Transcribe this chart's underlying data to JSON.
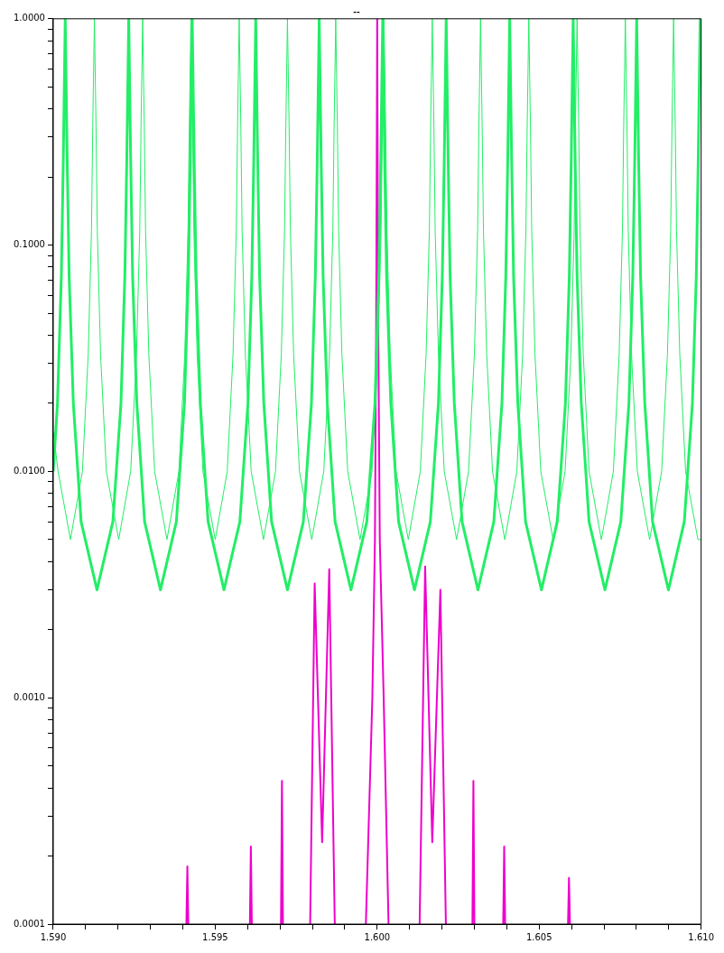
{
  "chart_data": {
    "type": "line",
    "title": "--",
    "xlim": [
      1.59,
      1.61
    ],
    "xticks": [
      {
        "value": 1.59,
        "label": "1.590"
      },
      {
        "value": 1.591,
        "label": null
      },
      {
        "value": 1.592,
        "label": null
      },
      {
        "value": 1.593,
        "label": null
      },
      {
        "value": 1.594,
        "label": null
      },
      1.595,
      {
        "value": 1.596,
        "label": null
      },
      {
        "value": 1.597,
        "label": null
      },
      {
        "value": 1.598,
        "label": null
      },
      {
        "value": 1.599,
        "label": null
      },
      {
        "value": 1.6,
        "label": "1.600"
      },
      {
        "value": 1.601,
        "label": null
      },
      {
        "value": 1.602,
        "label": null
      },
      {
        "value": 1.603,
        "label": null
      },
      {
        "value": 1.604,
        "label": null
      },
      1.605,
      {
        "value": 1.606,
        "label": null
      },
      {
        "value": 1.607,
        "label": null
      },
      {
        "value": 1.608,
        "label": null
      },
      {
        "value": 1.609,
        "label": null
      },
      {
        "value": 1.61,
        "label": "1.610"
      }
    ],
    "ylim": [
      0.0001,
      1
    ],
    "log": "y",
    "grid": false,
    "legend": false,
    "marker": "none",
    "line_style": "solid",
    "yticks": [
      {
        "value": 0.0001,
        "label": "0.0001"
      },
      {
        "value": 0.0002,
        "label": null
      },
      {
        "value": 0.0003,
        "label": null
      },
      {
        "value": 0.0004,
        "label": null
      },
      {
        "value": 0.0005,
        "label": null
      },
      {
        "value": 0.0006,
        "label": null
      },
      {
        "value": 0.0007,
        "label": null
      },
      {
        "value": 0.0008,
        "label": null
      },
      {
        "value": 0.0009,
        "label": null
      },
      {
        "value": 0.001,
        "label": "0.0010"
      },
      {
        "value": 0.002,
        "label": null
      },
      {
        "value": 0.003,
        "label": null
      },
      {
        "value": 0.004,
        "label": null
      },
      {
        "value": 0.005,
        "label": null
      },
      {
        "value": 0.006,
        "label": null
      },
      {
        "value": 0.007,
        "label": null
      },
      {
        "value": 0.008,
        "label": null
      },
      {
        "value": 0.009,
        "label": null
      },
      {
        "value": 0.01,
        "label": "0.0100"
      },
      {
        "value": 0.02,
        "label": null
      },
      {
        "value": 0.03,
        "label": null
      },
      {
        "value": 0.04,
        "label": null
      },
      {
        "value": 0.05,
        "label": null
      },
      {
        "value": 0.06,
        "label": null
      },
      {
        "value": 0.07,
        "label": null
      },
      {
        "value": 0.08,
        "label": null
      },
      {
        "value": 0.09,
        "label": null
      },
      {
        "value": 0.1,
        "label": "0.1000"
      },
      {
        "value": 0.2,
        "label": null
      },
      {
        "value": 0.3,
        "label": null
      },
      {
        "value": 0.4,
        "label": null
      },
      {
        "value": 0.5,
        "label": null
      },
      {
        "value": 0.6,
        "label": null
      },
      {
        "value": 0.7,
        "label": null
      },
      {
        "value": 0.8,
        "label": null
      },
      {
        "value": 0.9,
        "label": null
      },
      {
        "value": 1,
        "label": "1.0000"
      }
    ],
    "series": [
      {
        "color": "#22ee66",
        "x": [
          1.59,
          1.59013,
          1.59025,
          1.59031,
          1.59037,
          1.59043,
          1.59049,
          1.59062,
          1.59086,
          1.59135,
          1.59184,
          1.59209,
          1.59221,
          1.59227,
          1.59233,
          1.59239,
          1.59245,
          1.59258,
          1.59282,
          1.59331,
          1.5938,
          1.59405,
          1.59417,
          1.59423,
          1.59429,
          1.59435,
          1.59441,
          1.59454,
          1.59478,
          1.59527,
          1.59576,
          1.59601,
          1.59613,
          1.59619,
          1.59625,
          1.59631,
          1.59637,
          1.5965,
          1.59674,
          1.59723,
          1.59772,
          1.59797,
          1.59809,
          1.59815,
          1.59821,
          1.59827,
          1.59833,
          1.59846,
          1.5987,
          1.59919,
          1.59968,
          1.59993,
          1.60005,
          1.60011,
          1.60017,
          1.60023,
          1.60029,
          1.60042,
          1.60066,
          1.60115,
          1.60164,
          1.60189,
          1.60201,
          1.60207,
          1.60213,
          1.60219,
          1.60225,
          1.60238,
          1.60262,
          1.60311,
          1.6036,
          1.60385,
          1.60397,
          1.60403,
          1.60409,
          1.60415,
          1.60421,
          1.60434,
          1.60458,
          1.60507,
          1.60556,
          1.60581,
          1.60593,
          1.60599,
          1.60605,
          1.60611,
          1.60617,
          1.6063,
          1.60654,
          1.60703,
          1.60752,
          1.60777,
          1.60789,
          1.60795,
          1.60801,
          1.60807,
          1.60813,
          1.60826,
          1.6085,
          1.60899,
          1.60948,
          1.60973,
          1.60985,
          1.60991,
          1.60997,
          1.61
        ],
        "values": [
          0.01,
          0.02,
          0.073,
          0.24,
          1,
          0.24,
          0.073,
          0.02,
          0.006,
          0.003,
          0.006,
          0.02,
          0.073,
          0.24,
          1,
          0.24,
          0.073,
          0.02,
          0.006,
          0.003,
          0.006,
          0.02,
          0.073,
          0.24,
          1,
          0.24,
          0.073,
          0.02,
          0.006,
          0.003,
          0.006,
          0.02,
          0.073,
          0.24,
          1,
          0.24,
          0.073,
          0.02,
          0.006,
          0.003,
          0.006,
          0.02,
          0.073,
          0.24,
          1,
          0.24,
          0.073,
          0.02,
          0.006,
          0.003,
          0.006,
          0.02,
          0.073,
          0.24,
          1,
          0.24,
          0.073,
          0.02,
          0.006,
          0.003,
          0.006,
          0.02,
          0.073,
          0.24,
          1,
          0.24,
          0.073,
          0.02,
          0.006,
          0.003,
          0.006,
          0.02,
          0.073,
          0.24,
          1,
          0.24,
          0.073,
          0.02,
          0.006,
          0.003,
          0.006,
          0.02,
          0.073,
          0.24,
          1,
          0.24,
          0.073,
          0.02,
          0.006,
          0.003,
          0.006,
          0.02,
          0.073,
          0.24,
          1,
          0.24,
          0.073,
          0.02,
          0.006,
          0.003,
          0.006,
          0.02,
          0.073,
          0.24,
          1,
          0.5
        ]
      },
      {
        "color": "#22ee66",
        "x": [
          1.59,
          1.59015,
          1.59053,
          1.5909,
          1.59108,
          1.59118,
          1.59122,
          1.59127,
          1.59132,
          1.59136,
          1.59146,
          1.59164,
          1.59202,
          1.59239,
          1.59257,
          1.59267,
          1.59271,
          1.59276,
          1.59281,
          1.59285,
          1.59295,
          1.59313,
          1.59351,
          1.59388,
          1.59406,
          1.59416,
          1.5942,
          1.59425,
          1.5943,
          1.59434,
          1.59444,
          1.59462,
          1.595,
          1.59537,
          1.59555,
          1.59565,
          1.59569,
          1.59574,
          1.59579,
          1.59583,
          1.59593,
          1.59611,
          1.59649,
          1.59686,
          1.59704,
          1.59714,
          1.59718,
          1.59723,
          1.59728,
          1.59732,
          1.59742,
          1.5976,
          1.59798,
          1.59835,
          1.59853,
          1.59863,
          1.59867,
          1.59872,
          1.59877,
          1.59881,
          1.59891,
          1.59909,
          1.59947,
          1.59984,
          1.60002,
          1.60012,
          1.60016,
          1.60021,
          1.60026,
          1.6003,
          1.6004,
          1.60058,
          1.60096,
          1.60133,
          1.60151,
          1.60161,
          1.60165,
          1.6017,
          1.60175,
          1.60179,
          1.60189,
          1.60207,
          1.60245,
          1.60282,
          1.603,
          1.6031,
          1.60314,
          1.60319,
          1.60324,
          1.60328,
          1.60338,
          1.60356,
          1.60394,
          1.60431,
          1.60449,
          1.60459,
          1.60463,
          1.60468,
          1.60473,
          1.60477,
          1.60487,
          1.60505,
          1.60543,
          1.6058,
          1.60598,
          1.60608,
          1.60612,
          1.60617,
          1.60622,
          1.60626,
          1.60636,
          1.60654,
          1.60692,
          1.60729,
          1.60747,
          1.60757,
          1.60761,
          1.60766,
          1.60771,
          1.60775,
          1.60785,
          1.60803,
          1.60841,
          1.60878,
          1.60896,
          1.60906,
          1.6091,
          1.60915,
          1.6092,
          1.60924,
          1.60934,
          1.60952,
          1.6099,
          1.61
        ],
        "values": [
          0.015,
          0.01,
          0.005,
          0.01,
          0.033,
          0.116,
          0.34,
          1,
          0.34,
          0.116,
          0.033,
          0.01,
          0.005,
          0.01,
          0.033,
          0.116,
          0.34,
          1,
          0.34,
          0.116,
          0.033,
          0.01,
          0.005,
          0.01,
          0.033,
          0.116,
          0.34,
          1,
          0.34,
          0.116,
          0.033,
          0.01,
          0.005,
          0.01,
          0.033,
          0.116,
          0.34,
          1,
          0.34,
          0.116,
          0.033,
          0.01,
          0.005,
          0.01,
          0.033,
          0.116,
          0.34,
          1,
          0.34,
          0.116,
          0.033,
          0.01,
          0.005,
          0.01,
          0.033,
          0.116,
          0.34,
          1,
          0.34,
          0.116,
          0.033,
          0.01,
          0.005,
          0.01,
          0.033,
          0.116,
          0.34,
          1,
          0.34,
          0.116,
          0.033,
          0.01,
          0.005,
          0.01,
          0.033,
          0.116,
          0.34,
          1,
          0.34,
          0.116,
          0.033,
          0.01,
          0.005,
          0.01,
          0.033,
          0.116,
          0.34,
          1,
          0.34,
          0.116,
          0.033,
          0.01,
          0.005,
          0.01,
          0.033,
          0.116,
          0.34,
          1,
          0.34,
          0.116,
          0.033,
          0.01,
          0.005,
          0.01,
          0.033,
          0.116,
          0.34,
          1,
          0.34,
          0.116,
          0.033,
          0.01,
          0.005,
          0.01,
          0.033,
          0.116,
          0.34,
          1,
          0.34,
          0.116,
          0.033,
          0.01,
          0.005,
          0.01,
          0.033,
          0.116,
          0.34,
          1,
          0.34,
          0.116,
          0.033,
          0.01,
          0.005,
          0.005
        ]
      },
      {
        "color": "#ee00cc",
        "x": [
          1.59411,
          1.59414,
          1.59417,
          1.5951,
          1.59607,
          1.5961,
          1.59613,
          1.5966,
          1.59703,
          1.59706,
          1.59709,
          1.5975,
          1.59793,
          1.59807,
          1.5983,
          1.59852,
          1.59869,
          1.5992,
          1.59965,
          1.59985,
          1.59993,
          1.59997,
          1.6,
          1.60003,
          1.60008,
          1.6002,
          1.60035,
          1.6008,
          1.60131,
          1.60148,
          1.6017,
          1.60195,
          1.60212,
          1.6025,
          1.60294,
          1.60297,
          1.603,
          1.6035,
          1.60389,
          1.60392,
          1.60395,
          1.6049,
          1.60589,
          1.60592,
          1.60595
        ],
        "values": [
          0.0001,
          0.00018,
          0.0001,
          null,
          0.0001,
          0.00022,
          0.0001,
          null,
          0.0001,
          0.00043,
          0.0001,
          null,
          0.0001,
          0.0032,
          0.00023,
          0.0037,
          0.0001,
          null,
          0.0001,
          0.001,
          0.005,
          0.05,
          1,
          0.05,
          0.005,
          0.001,
          0.0001,
          null,
          0.0001,
          0.0038,
          0.00023,
          0.003,
          0.0001,
          null,
          0.0001,
          0.00043,
          0.0001,
          null,
          0.0001,
          0.00022,
          0.0001,
          null,
          0.0001,
          0.00016,
          0.0001
        ]
      }
    ]
  }
}
